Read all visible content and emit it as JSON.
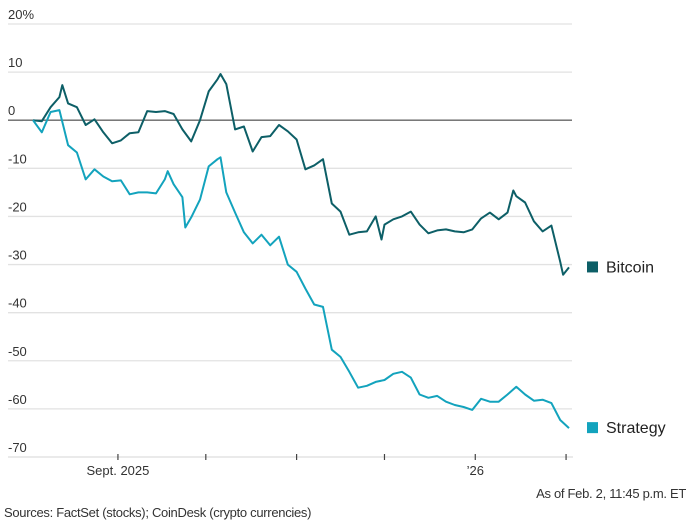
{
  "chart_data": {
    "type": "line",
    "title": "",
    "xlabel": "",
    "ylabel": "",
    "ylim": [
      -70,
      20
    ],
    "xlim": [
      "2025-08-03",
      "2026-02-02"
    ],
    "y_ticks": [
      20,
      10,
      0,
      -10,
      -20,
      -30,
      -40,
      -50,
      -60,
      -70
    ],
    "y_tick_labels": [
      "20%",
      "10",
      "0",
      "-10",
      "-20",
      "-30",
      "-40",
      "-50",
      "-60",
      "-70"
    ],
    "x_ticks": [
      "2025-09-01",
      "2025-10-01",
      "2025-11-01",
      "2025-12-01",
      "2026-01-01",
      "2026-02-01"
    ],
    "x_tick_labels": [
      {
        "date": "2025-09-01",
        "label": "Sept. 2025"
      },
      {
        "date": "2026-01-01",
        "label": "’26"
      }
    ],
    "grid": true,
    "legend_placement": "right, at line ends",
    "series": [
      {
        "name": "Bitcoin",
        "color": "#0d5f67",
        "points": [
          [
            "2025-08-03",
            0
          ],
          [
            "2025-08-06",
            -0.2
          ],
          [
            "2025-08-09",
            2.7
          ],
          [
            "2025-08-12",
            4.8
          ],
          [
            "2025-08-13",
            7.3
          ],
          [
            "2025-08-15",
            3.5
          ],
          [
            "2025-08-18",
            2.7
          ],
          [
            "2025-08-21",
            -1
          ],
          [
            "2025-08-24",
            0.2
          ],
          [
            "2025-08-27",
            -2.5
          ],
          [
            "2025-08-30",
            -4.8
          ],
          [
            "2025-09-02",
            -4.2
          ],
          [
            "2025-09-05",
            -2.7
          ],
          [
            "2025-09-08",
            -2.5
          ],
          [
            "2025-09-11",
            1.9
          ],
          [
            "2025-09-14",
            1.7
          ],
          [
            "2025-09-17",
            1.9
          ],
          [
            "2025-09-20",
            1.3
          ],
          [
            "2025-09-23",
            -1.9
          ],
          [
            "2025-09-26",
            -4.4
          ],
          [
            "2025-09-29",
            0
          ],
          [
            "2025-10-02",
            6
          ],
          [
            "2025-10-05",
            8.5
          ],
          [
            "2025-10-06",
            9.6
          ],
          [
            "2025-10-08",
            7.5
          ],
          [
            "2025-10-11",
            -1.9
          ],
          [
            "2025-10-14",
            -1.3
          ],
          [
            "2025-10-17",
            -6.5
          ],
          [
            "2025-10-20",
            -3.5
          ],
          [
            "2025-10-23",
            -3.3
          ],
          [
            "2025-10-26",
            -1
          ],
          [
            "2025-10-29",
            -2.3
          ],
          [
            "2025-11-01",
            -4
          ],
          [
            "2025-11-04",
            -10.2
          ],
          [
            "2025-11-07",
            -9.4
          ],
          [
            "2025-11-10",
            -8.1
          ],
          [
            "2025-11-13",
            -17.3
          ],
          [
            "2025-11-16",
            -19
          ],
          [
            "2025-11-19",
            -23.8
          ],
          [
            "2025-11-22",
            -23.3
          ],
          [
            "2025-11-25",
            -23.1
          ],
          [
            "2025-11-28",
            -20
          ],
          [
            "2025-11-30",
            -24.8
          ],
          [
            "2025-12-01",
            -21.7
          ],
          [
            "2025-12-04",
            -20.6
          ],
          [
            "2025-12-07",
            -20
          ],
          [
            "2025-12-10",
            -19
          ],
          [
            "2025-12-13",
            -21.7
          ],
          [
            "2025-12-16",
            -23.5
          ],
          [
            "2025-12-19",
            -22.9
          ],
          [
            "2025-12-22",
            -22.7
          ],
          [
            "2025-12-25",
            -23.1
          ],
          [
            "2025-12-28",
            -23.3
          ],
          [
            "2025-12-31",
            -22.7
          ],
          [
            "2026-01-03",
            -20.4
          ],
          [
            "2026-01-06",
            -19.2
          ],
          [
            "2026-01-09",
            -20.6
          ],
          [
            "2026-01-12",
            -19.2
          ],
          [
            "2026-01-14",
            -14.6
          ],
          [
            "2026-01-15",
            -15.8
          ],
          [
            "2026-01-18",
            -17.1
          ],
          [
            "2026-01-21",
            -21
          ],
          [
            "2026-01-24",
            -23.1
          ],
          [
            "2026-01-27",
            -21.9
          ],
          [
            "2026-01-30",
            -29.4
          ],
          [
            "2026-01-31",
            -32.1
          ],
          [
            "2026-02-02",
            -30.6
          ]
        ]
      },
      {
        "name": "Strategy",
        "color": "#13a3bd",
        "points": [
          [
            "2025-08-03",
            0
          ],
          [
            "2025-08-06",
            -2.5
          ],
          [
            "2025-08-09",
            1.7
          ],
          [
            "2025-08-12",
            2.1
          ],
          [
            "2025-08-15",
            -5.2
          ],
          [
            "2025-08-18",
            -6.7
          ],
          [
            "2025-08-21",
            -12.3
          ],
          [
            "2025-08-24",
            -10.2
          ],
          [
            "2025-08-27",
            -11.7
          ],
          [
            "2025-08-30",
            -12.7
          ],
          [
            "2025-09-02",
            -12.5
          ],
          [
            "2025-09-05",
            -15.4
          ],
          [
            "2025-09-08",
            -15
          ],
          [
            "2025-09-11",
            -15
          ],
          [
            "2025-09-14",
            -15.2
          ],
          [
            "2025-09-17",
            -12.3
          ],
          [
            "2025-09-18",
            -10.6
          ],
          [
            "2025-09-20",
            -13.3
          ],
          [
            "2025-09-23",
            -16
          ],
          [
            "2025-09-24",
            -22.3
          ],
          [
            "2025-09-26",
            -20.2
          ],
          [
            "2025-09-29",
            -16.5
          ],
          [
            "2025-10-02",
            -9.6
          ],
          [
            "2025-10-05",
            -8.1
          ],
          [
            "2025-10-06",
            -7.7
          ],
          [
            "2025-10-08",
            -15
          ],
          [
            "2025-10-11",
            -19.2
          ],
          [
            "2025-10-14",
            -23.3
          ],
          [
            "2025-10-17",
            -25.6
          ],
          [
            "2025-10-20",
            -23.8
          ],
          [
            "2025-10-23",
            -26
          ],
          [
            "2025-10-26",
            -24.2
          ],
          [
            "2025-10-29",
            -30
          ],
          [
            "2025-11-01",
            -31.5
          ],
          [
            "2025-11-04",
            -35
          ],
          [
            "2025-11-07",
            -38.3
          ],
          [
            "2025-11-10",
            -38.8
          ],
          [
            "2025-11-13",
            -47.7
          ],
          [
            "2025-11-16",
            -49.2
          ],
          [
            "2025-11-19",
            -52.3
          ],
          [
            "2025-11-22",
            -55.6
          ],
          [
            "2025-11-25",
            -55.2
          ],
          [
            "2025-11-28",
            -54.4
          ],
          [
            "2025-12-01",
            -54
          ],
          [
            "2025-12-04",
            -52.7
          ],
          [
            "2025-12-07",
            -52.3
          ],
          [
            "2025-12-10",
            -53.5
          ],
          [
            "2025-12-13",
            -57
          ],
          [
            "2025-12-16",
            -57.7
          ],
          [
            "2025-12-19",
            -57.3
          ],
          [
            "2025-12-22",
            -58.5
          ],
          [
            "2025-12-25",
            -59.2
          ],
          [
            "2025-12-28",
            -59.6
          ],
          [
            "2025-12-31",
            -60.2
          ],
          [
            "2026-01-03",
            -57.9
          ],
          [
            "2026-01-06",
            -58.5
          ],
          [
            "2026-01-09",
            -58.5
          ],
          [
            "2026-01-12",
            -57
          ],
          [
            "2026-01-15",
            -55.4
          ],
          [
            "2026-01-18",
            -57
          ],
          [
            "2026-01-21",
            -58.3
          ],
          [
            "2026-01-24",
            -58.1
          ],
          [
            "2026-01-27",
            -58.8
          ],
          [
            "2026-01-30",
            -62.3
          ],
          [
            "2026-02-02",
            -64
          ]
        ]
      }
    ]
  },
  "footer": {
    "as_of": "As of Feb. 2, 11:45 p.m. ET",
    "sources": "Sources: FactSet (stocks); CoinDesk (crypto currencies)"
  }
}
